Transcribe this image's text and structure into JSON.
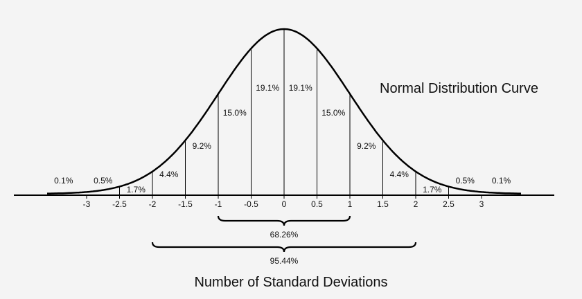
{
  "chart_data": {
    "type": "area",
    "title": "Normal Distribution Curve",
    "xlabel": "Number of Standard Deviations",
    "ylabel": "",
    "x_ticks": [
      "-3",
      "-2.5",
      "-2",
      "-1.5",
      "-1",
      "-0.5",
      "0",
      "0.5",
      "1",
      "1.5",
      "2",
      "2.5",
      "3"
    ],
    "x_tick_values": [
      -3,
      -2.5,
      -2,
      -1.5,
      -1,
      -0.5,
      0,
      0.5,
      1,
      1.5,
      2,
      2.5,
      3
    ],
    "xlim": [
      -3.7,
      3.5
    ],
    "dividers": [
      -2.5,
      -2,
      -1.5,
      -1,
      -0.5,
      0,
      0.5,
      1,
      1.5,
      2,
      2.5
    ],
    "segments": [
      {
        "label": "0.1%",
        "center": -3.35
      },
      {
        "label": "0.5%",
        "center": -2.75
      },
      {
        "label": "1.7%",
        "center": -2.25
      },
      {
        "label": "4.4%",
        "center": -1.75
      },
      {
        "label": "9.2%",
        "center": -1.25
      },
      {
        "label": "15.0%",
        "center": -0.75
      },
      {
        "label": "19.1%",
        "center": -0.25
      },
      {
        "label": "19.1%",
        "center": 0.25
      },
      {
        "label": "15.0%",
        "center": 0.75
      },
      {
        "label": "9.2%",
        "center": 1.25
      },
      {
        "label": "4.4%",
        "center": 1.75
      },
      {
        "label": "1.7%",
        "center": 2.25
      },
      {
        "label": "0.5%",
        "center": 2.75
      },
      {
        "label": "0.1%",
        "center": 3.3
      }
    ],
    "ranges": [
      {
        "from": -1,
        "to": 1,
        "label": "68.26%"
      },
      {
        "from": -2,
        "to": 2,
        "label": "95.44%"
      }
    ]
  }
}
